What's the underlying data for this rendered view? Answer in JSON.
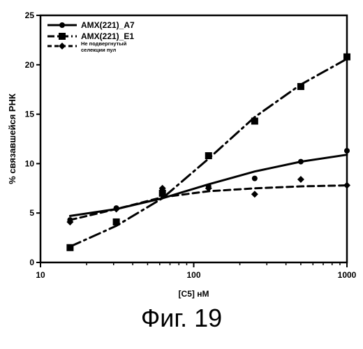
{
  "figure": {
    "caption": "Фиг. 19"
  },
  "chart_data": {
    "type": "line",
    "xlabel": "[C5] нМ",
    "ylabel": "% связавшейся РНК",
    "x_scale": "log",
    "xlim": [
      10,
      1000
    ],
    "ylim": [
      0,
      25
    ],
    "x_ticks": [
      10,
      100,
      1000
    ],
    "x_tick_labels": [
      "10",
      "100",
      "1000"
    ],
    "y_ticks": [
      0,
      5,
      10,
      15,
      20,
      25
    ],
    "y_tick_labels": [
      "0",
      "5",
      "10",
      "15",
      "20",
      "25"
    ],
    "legend_position": "top-left",
    "grid": false,
    "series": [
      {
        "name": "AMX(221)_A7",
        "marker": "circle",
        "line_style": "solid",
        "color": "#000000",
        "points": [
          [
            15.6,
            4.3
          ],
          [
            31.25,
            5.5
          ],
          [
            62.5,
            7.3
          ],
          [
            125,
            7.7
          ],
          [
            250,
            8.5
          ],
          [
            500,
            10.2
          ],
          [
            1000,
            11.3
          ]
        ],
        "fit": [
          [
            15.6,
            4.7
          ],
          [
            31.25,
            5.4
          ],
          [
            62.5,
            6.5
          ],
          [
            125,
            7.9
          ],
          [
            250,
            9.2
          ],
          [
            500,
            10.2
          ],
          [
            1000,
            10.9
          ]
        ]
      },
      {
        "name": "AMX(221)_E1",
        "marker": "square",
        "line_style": "dash-dot",
        "color": "#000000",
        "points": [
          [
            15.6,
            1.5
          ],
          [
            31.25,
            4.1
          ],
          [
            62.5,
            7.0
          ],
          [
            125,
            10.8
          ],
          [
            250,
            14.3
          ],
          [
            500,
            17.8
          ],
          [
            1000,
            20.8
          ]
        ],
        "fit": [
          [
            15.6,
            1.6
          ],
          [
            31.25,
            3.7
          ],
          [
            62.5,
            6.5
          ],
          [
            125,
            10.5
          ],
          [
            250,
            14.7
          ],
          [
            500,
            18.0
          ],
          [
            1000,
            20.6
          ]
        ]
      },
      {
        "name": "Не подвергнутый селекции пул",
        "marker": "diamond",
        "line_style": "dashed",
        "color": "#000000",
        "points": [
          [
            15.6,
            4.1
          ],
          [
            31.25,
            5.4
          ],
          [
            62.5,
            7.5
          ],
          [
            125,
            7.5
          ],
          [
            250,
            6.9
          ],
          [
            500,
            8.4
          ],
          [
            1000,
            7.8
          ]
        ],
        "fit": [
          [
            15.6,
            4.3
          ],
          [
            31.25,
            5.4
          ],
          [
            62.5,
            6.6
          ],
          [
            125,
            7.2
          ],
          [
            250,
            7.5
          ],
          [
            500,
            7.7
          ],
          [
            1000,
            7.8
          ]
        ]
      }
    ]
  }
}
